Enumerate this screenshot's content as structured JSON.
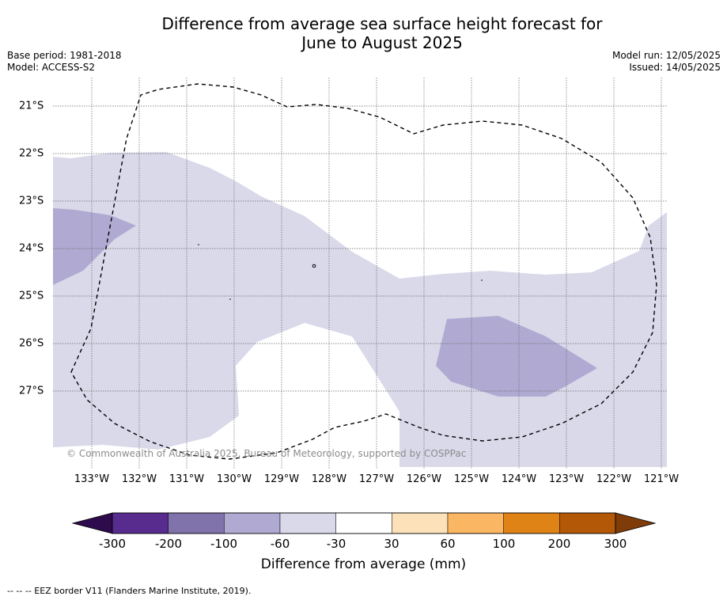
{
  "title_line1": "Difference from average sea surface height forecast for",
  "title_line2": "June to August 2025",
  "base_period": "Base period: 1981-2018",
  "model": "Model: ACCESS-S2",
  "model_run": "Model run: 12/05/2025",
  "issued": "Issued: 14/05/2025",
  "copyright": "© Commonwealth of Australia 2025, Bureau of Meteorology, supported by COSPPac",
  "footer": "--  --  -- EEZ border V11 (Flanders Marine Institute, 2019).",
  "map": {
    "lon_labels": [
      "133°W",
      "132°W",
      "131°W",
      "130°W",
      "129°W",
      "128°W",
      "127°W",
      "126°W",
      "125°W",
      "124°W",
      "123°W",
      "122°W",
      "121°W"
    ],
    "lat_labels": [
      "21°S",
      "22°S",
      "23°S",
      "24°S",
      "25°S",
      "26°S",
      "27°S"
    ],
    "lon_range": [
      -133.8,
      -120.9
    ],
    "lat_range": [
      -28.6,
      -20.4
    ],
    "gridlines": true,
    "categories": [
      {
        "range": "-30 to -60",
        "color": "#d9d9ea"
      },
      {
        "range": "-60 to -100",
        "color": "#b0aad2"
      }
    ],
    "eez_border_style": "dashed"
  },
  "colorbar": {
    "ticks": [
      "-300",
      "-200",
      "-100",
      "-60",
      "-30",
      "30",
      "60",
      "100",
      "200",
      "300"
    ],
    "colors": [
      "#582b8f",
      "#8072ab",
      "#b0aad2",
      "#d9d9ea",
      "#ffffff",
      "#fde1b8",
      "#fbb663",
      "#e08316",
      "#b35807"
    ],
    "under_color": "#2e0b4c",
    "over_color": "#7f3b08",
    "label": "Difference from average (mm)"
  }
}
